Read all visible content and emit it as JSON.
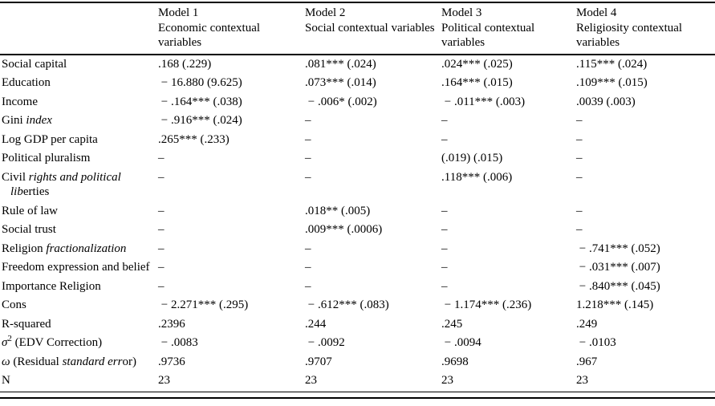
{
  "colors": {
    "text": "#000000",
    "background": "#ffffff",
    "rule": "#000000"
  },
  "table": {
    "columns": [
      {
        "model": "Model 1",
        "desc": "Economic contextual variables"
      },
      {
        "model": "Model 2",
        "desc": "Social contextual variables"
      },
      {
        "model": "Model 3",
        "desc": "Political contextual variables"
      },
      {
        "model": "Model 4",
        "desc": "Religiosity contextual variables"
      }
    ],
    "rows": [
      {
        "label": "Social capital",
        "values": [
          ".168 (.229)",
          ".081*** (.024)",
          ".024*** (.025)",
          ".115*** (.024)"
        ]
      },
      {
        "label": "Education",
        "values": [
          " − 16.880 (9.625)",
          ".073*** (.014)",
          ".164*** (.015)",
          ".109*** (.015)"
        ]
      },
      {
        "label": "Income",
        "values": [
          " − .164*** (.038)",
          " − .006* (.002)",
          " − .011*** (.003)",
          ".0039 (.003)"
        ]
      },
      {
        "label_parts": [
          {
            "t": "Gini "
          },
          {
            "t": "index",
            "i": true
          }
        ],
        "values": [
          " − .916*** (.024)",
          "–",
          "–",
          "–"
        ]
      },
      {
        "label": "Log GDP per capita",
        "values": [
          ".265*** (.233)",
          "–",
          "–",
          "–"
        ]
      },
      {
        "label": "Political pluralism",
        "values": [
          "–",
          "–",
          "(.019) (.015)",
          "–"
        ]
      },
      {
        "label_parts": [
          {
            "t": "Civil "
          },
          {
            "t": "rights and political ",
            "i": true
          },
          {
            "t": "lib",
            "i": true
          },
          {
            "t": "erties"
          }
        ],
        "values": [
          "–",
          "–",
          ".118*** (.006)",
          "–"
        ]
      },
      {
        "label": "Rule of law",
        "values": [
          "–",
          ".018** (.005)",
          "–",
          "–"
        ]
      },
      {
        "label": "Social trust",
        "values": [
          "–",
          ".009*** (.0006)",
          "–",
          "–"
        ]
      },
      {
        "label_parts": [
          {
            "t": "Religion "
          },
          {
            "t": "fractionalization",
            "i": true
          }
        ],
        "values": [
          "–",
          "–",
          "–",
          " − .741*** (.052)"
        ]
      },
      {
        "label": "Freedom expression and belief",
        "values": [
          "–",
          "–",
          "–",
          " − .031*** (.007)"
        ]
      },
      {
        "label": "Importance Religion",
        "values": [
          "–",
          "–",
          "–",
          " − .840*** (.045)"
        ]
      },
      {
        "label": "Cons",
        "values": [
          " − 2.271*** (.295)",
          " − .612*** (.083)",
          " − 1.174*** (.236)",
          "1.218*** (.145)"
        ]
      },
      {
        "label": "R-squared",
        "values": [
          ".2396",
          ".244",
          ".245",
          ".249"
        ]
      },
      {
        "label_parts": [
          {
            "t": "σ",
            "i": true
          },
          {
            "t": "2",
            "sup": true
          },
          {
            "t": " (EDV Correction)"
          }
        ],
        "values": [
          " − .0083",
          " − .0092",
          " − .0094",
          " − .0103"
        ]
      },
      {
        "label_parts": [
          {
            "t": "ω",
            "i": true
          },
          {
            "t": " (Residual "
          },
          {
            "t": "standard err",
            "i": true
          },
          {
            "t": "or)"
          }
        ],
        "values": [
          ".9736",
          ".9707",
          ".9698",
          ".967"
        ]
      },
      {
        "label": "N",
        "values": [
          "23",
          "23",
          "23",
          "23"
        ]
      }
    ]
  }
}
